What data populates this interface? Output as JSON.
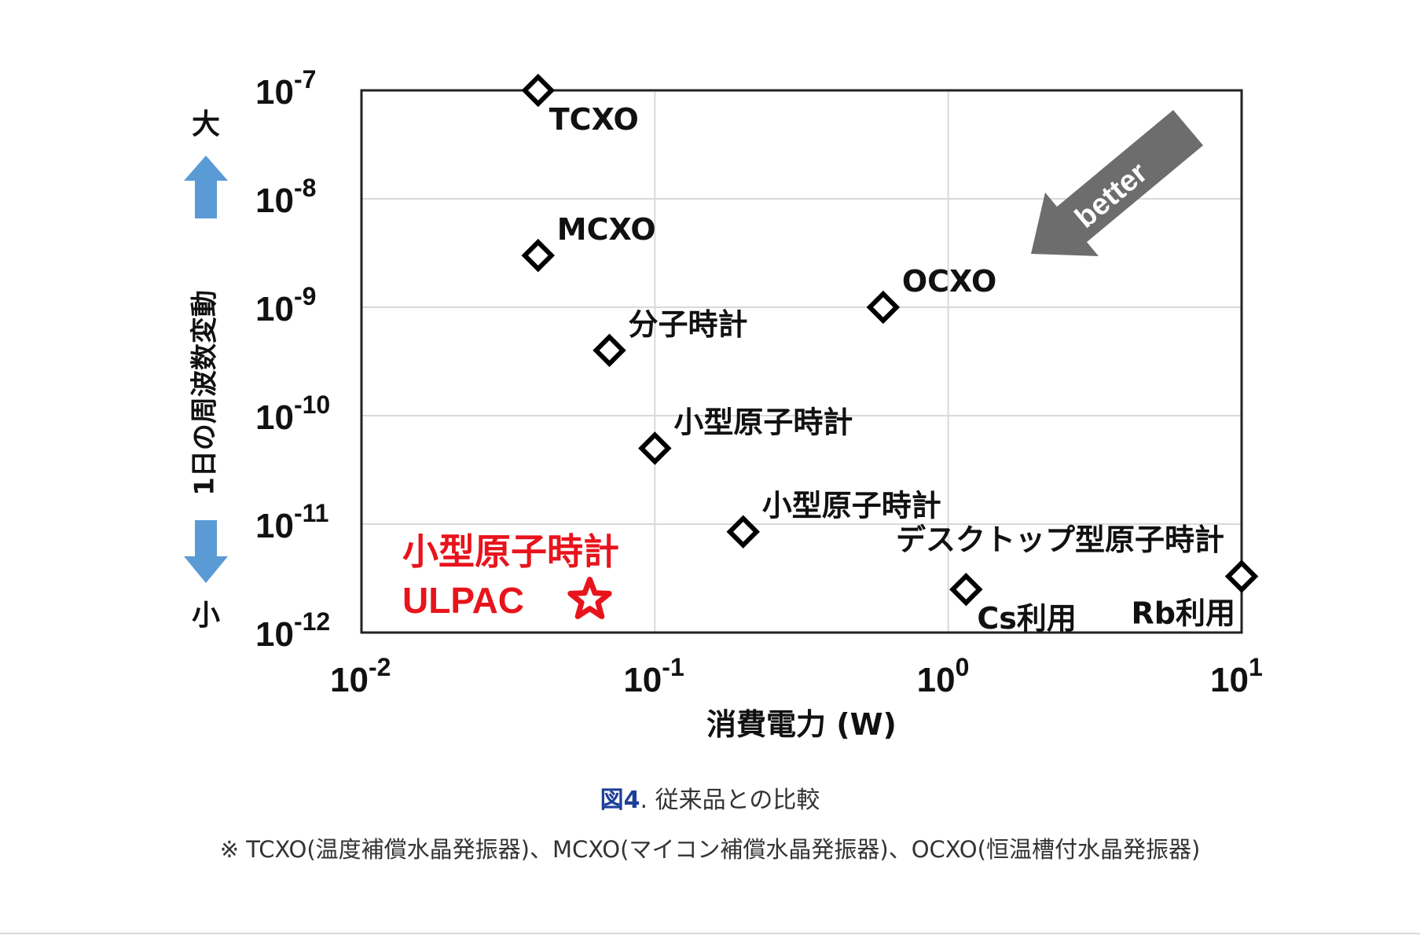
{
  "chart_data": {
    "type": "scatter",
    "xscale": "log",
    "yscale": "log",
    "xlim": [
      0.01,
      10
    ],
    "ylim": [
      1e-12,
      1e-07
    ],
    "grid": true,
    "xlabel": "消費電力 (W)",
    "ylabel": "1日の周波数変動",
    "ylabel_top": "大",
    "ylabel_bottom": "小",
    "colors": {
      "marker": "#000000",
      "highlight": "#e8141c",
      "arrow_up_down": "#5b9bd5",
      "better_arrow": "#6d6d6d",
      "grid": "#d9d9d9"
    },
    "x_ticks": [
      {
        "value": 0.01,
        "base": "10",
        "exp": "-2"
      },
      {
        "value": 0.1,
        "base": "10",
        "exp": "-1"
      },
      {
        "value": 1,
        "base": "10",
        "exp": "0"
      },
      {
        "value": 10,
        "base": "10",
        "exp": "1"
      }
    ],
    "y_ticks": [
      {
        "value": 1e-07,
        "base": "10",
        "exp": "-7"
      },
      {
        "value": 1e-08,
        "base": "10",
        "exp": "-8"
      },
      {
        "value": 1e-09,
        "base": "10",
        "exp": "-9"
      },
      {
        "value": 1e-10,
        "base": "10",
        "exp": "-10"
      },
      {
        "value": 1e-11,
        "base": "10",
        "exp": "-11"
      },
      {
        "value": 1e-12,
        "base": "10",
        "exp": "-12"
      }
    ],
    "points": [
      {
        "name": "TCXO",
        "x": 0.04,
        "y": 1e-07,
        "label_pos": "below-right"
      },
      {
        "name": "MCXO",
        "x": 0.04,
        "y": 3e-09,
        "label_pos": "above-right"
      },
      {
        "name": "分子時計",
        "x": 0.07,
        "y": 4e-10,
        "label_pos": "above-right"
      },
      {
        "name": "小型原子時計",
        "x": 0.1,
        "y": 5e-11,
        "label_pos": "above-right"
      },
      {
        "name": "小型原子時計",
        "x": 0.2,
        "y": 8.5e-12,
        "label_pos": "above-right"
      },
      {
        "name": "OCXO",
        "x": 0.6,
        "y": 1e-09,
        "label_pos": "above-right"
      },
      {
        "name": "Cs利用",
        "x": 1.15,
        "y": 2.5e-12,
        "label_pos": "below-right"
      },
      {
        "name": "Rb利用",
        "x": 10,
        "y": 3.3e-12,
        "label_pos": "below-left"
      }
    ],
    "group_label": "デスクトップ型原子時計",
    "highlight": {
      "name_line1": "小型原子時計",
      "name_line2": "ULPAC",
      "x": 0.06,
      "y": 2e-12,
      "marker": "star"
    },
    "annotation": "better"
  },
  "caption": {
    "fig_label": "図4",
    "text": ". 従来品との比較"
  },
  "note": "※ TCXO(温度補償水晶発振器)、MCXO(マイコン補償水晶発振器)、OCXO(恒温槽付水晶発振器)"
}
